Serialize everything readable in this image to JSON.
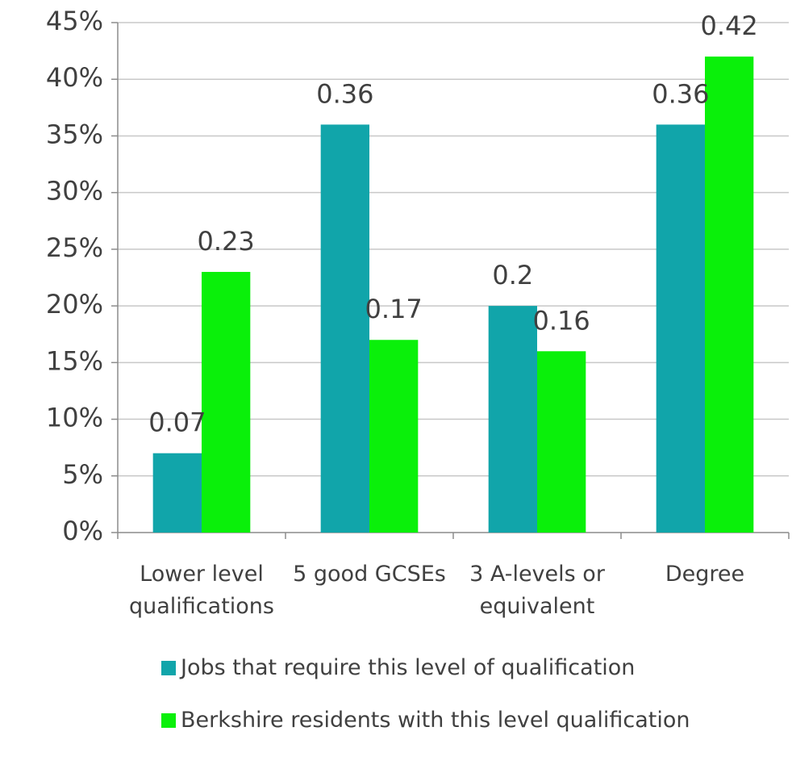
{
  "chart_data": {
    "type": "bar",
    "categories": [
      "Lower level qualifications",
      "5 good GCSEs",
      "3 A-levels or equivalent",
      "Degree"
    ],
    "series": [
      {
        "name": "Jobs that require this level of qualification",
        "color": "#11a5aa",
        "values": [
          7,
          36,
          20,
          36
        ],
        "value_labels": [
          "0.07",
          "0.36",
          "0.2",
          "0.36"
        ]
      },
      {
        "name": "Berkshire residents with this level qualification",
        "color": "#0af00a",
        "values": [
          23,
          17,
          16,
          42
        ],
        "value_labels": [
          "0.23",
          "0.17",
          "0.16",
          "0.42"
        ]
      }
    ],
    "ylim": [
      0,
      45
    ],
    "yticks": [
      {
        "value": 0,
        "label": "0%"
      },
      {
        "value": 5,
        "label": "5%"
      },
      {
        "value": 10,
        "label": "10%"
      },
      {
        "value": 15,
        "label": "15%"
      },
      {
        "value": 20,
        "label": "20%"
      },
      {
        "value": 25,
        "label": "25%"
      },
      {
        "value": 30,
        "label": "30%"
      },
      {
        "value": 35,
        "label": "35%"
      },
      {
        "value": 40,
        "label": "40%"
      },
      {
        "value": 45,
        "label": "45%"
      }
    ],
    "grid": true,
    "legend": "bottom"
  }
}
